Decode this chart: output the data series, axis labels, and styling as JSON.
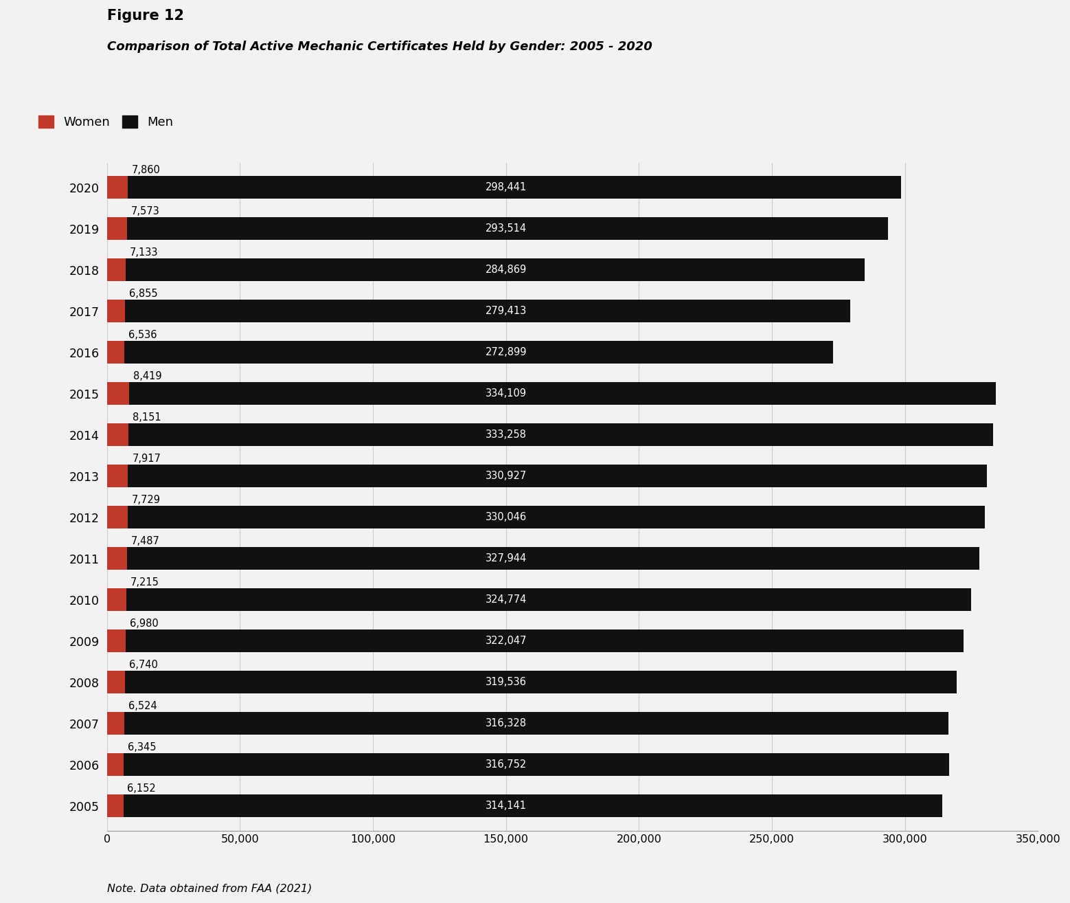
{
  "title_line1": "Figure 12",
  "title_line2": "Comparison of Total Active Mechanic Certificates Held by Gender: 2005 - 2020",
  "note": "Note. Data obtained from FAA (2021)",
  "years": [
    2020,
    2019,
    2018,
    2017,
    2016,
    2015,
    2014,
    2013,
    2012,
    2011,
    2010,
    2009,
    2008,
    2007,
    2006,
    2005
  ],
  "women": [
    7860,
    7573,
    7133,
    6855,
    6536,
    8419,
    8151,
    7917,
    7729,
    7487,
    7215,
    6980,
    6740,
    6524,
    6345,
    6152
  ],
  "men": [
    298441,
    293514,
    284869,
    279413,
    272899,
    334109,
    333258,
    330927,
    330046,
    327944,
    324774,
    322047,
    319536,
    316328,
    316752,
    314141
  ],
  "women_color": "#C0392B",
  "men_color": "#111111",
  "background_color": "#F2F2F2",
  "xlim": [
    0,
    350000
  ],
  "xticks": [
    0,
    50000,
    100000,
    150000,
    200000,
    250000,
    300000,
    350000
  ],
  "xtick_labels": [
    "0",
    "50,000",
    "100,000",
    "150,000",
    "200,000",
    "250,000",
    "300,000",
    "350,000"
  ]
}
